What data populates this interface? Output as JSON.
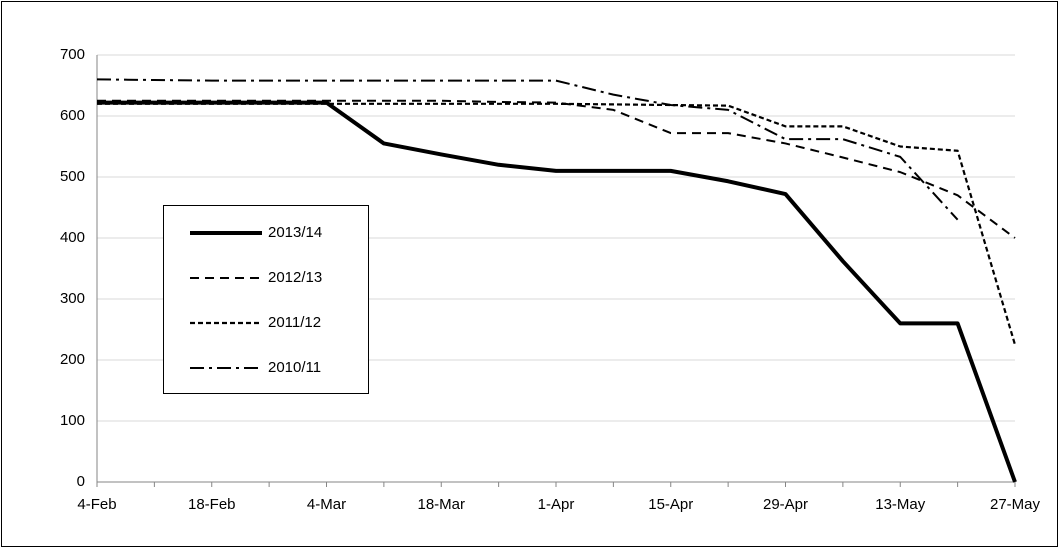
{
  "chart_data": {
    "type": "line",
    "categories": [
      "4-Feb",
      null,
      "18-Feb",
      null,
      "4-Mar",
      null,
      "18-Mar",
      null,
      "1-Apr",
      null,
      "15-Apr",
      null,
      "29-Apr",
      null,
      "13-May",
      null,
      "27-May"
    ],
    "series": [
      {
        "name": "2013/14",
        "color": "#000000",
        "line_style": "thick-solid",
        "values": [
          622,
          622,
          622,
          622,
          622,
          555,
          537,
          520,
          510,
          510,
          510,
          493,
          472,
          362,
          260,
          260,
          0
        ]
      },
      {
        "name": "2012/13",
        "color": "#000000",
        "line_style": "dashed",
        "values": [
          625,
          625,
          625,
          625,
          625,
          625,
          625,
          623,
          622,
          610,
          572,
          572,
          555,
          532,
          508,
          470,
          400
        ]
      },
      {
        "name": "2011/12",
        "color": "#000000",
        "line_style": "dotted",
        "values": [
          620,
          620,
          620,
          620,
          620,
          620,
          620,
          620,
          620,
          619,
          618,
          617,
          583,
          583,
          550,
          543,
          225
        ]
      },
      {
        "name": "2010/11",
        "color": "#000000",
        "line_style": "dash-dot",
        "values": [
          660,
          659,
          658,
          658,
          658,
          658,
          658,
          658,
          658,
          635,
          618,
          610,
          562,
          562,
          533,
          430,
          null
        ]
      }
    ],
    "ylim": [
      0,
      700
    ],
    "yticks": [
      0,
      100,
      200,
      300,
      400,
      500,
      600,
      700
    ],
    "grid": true
  }
}
